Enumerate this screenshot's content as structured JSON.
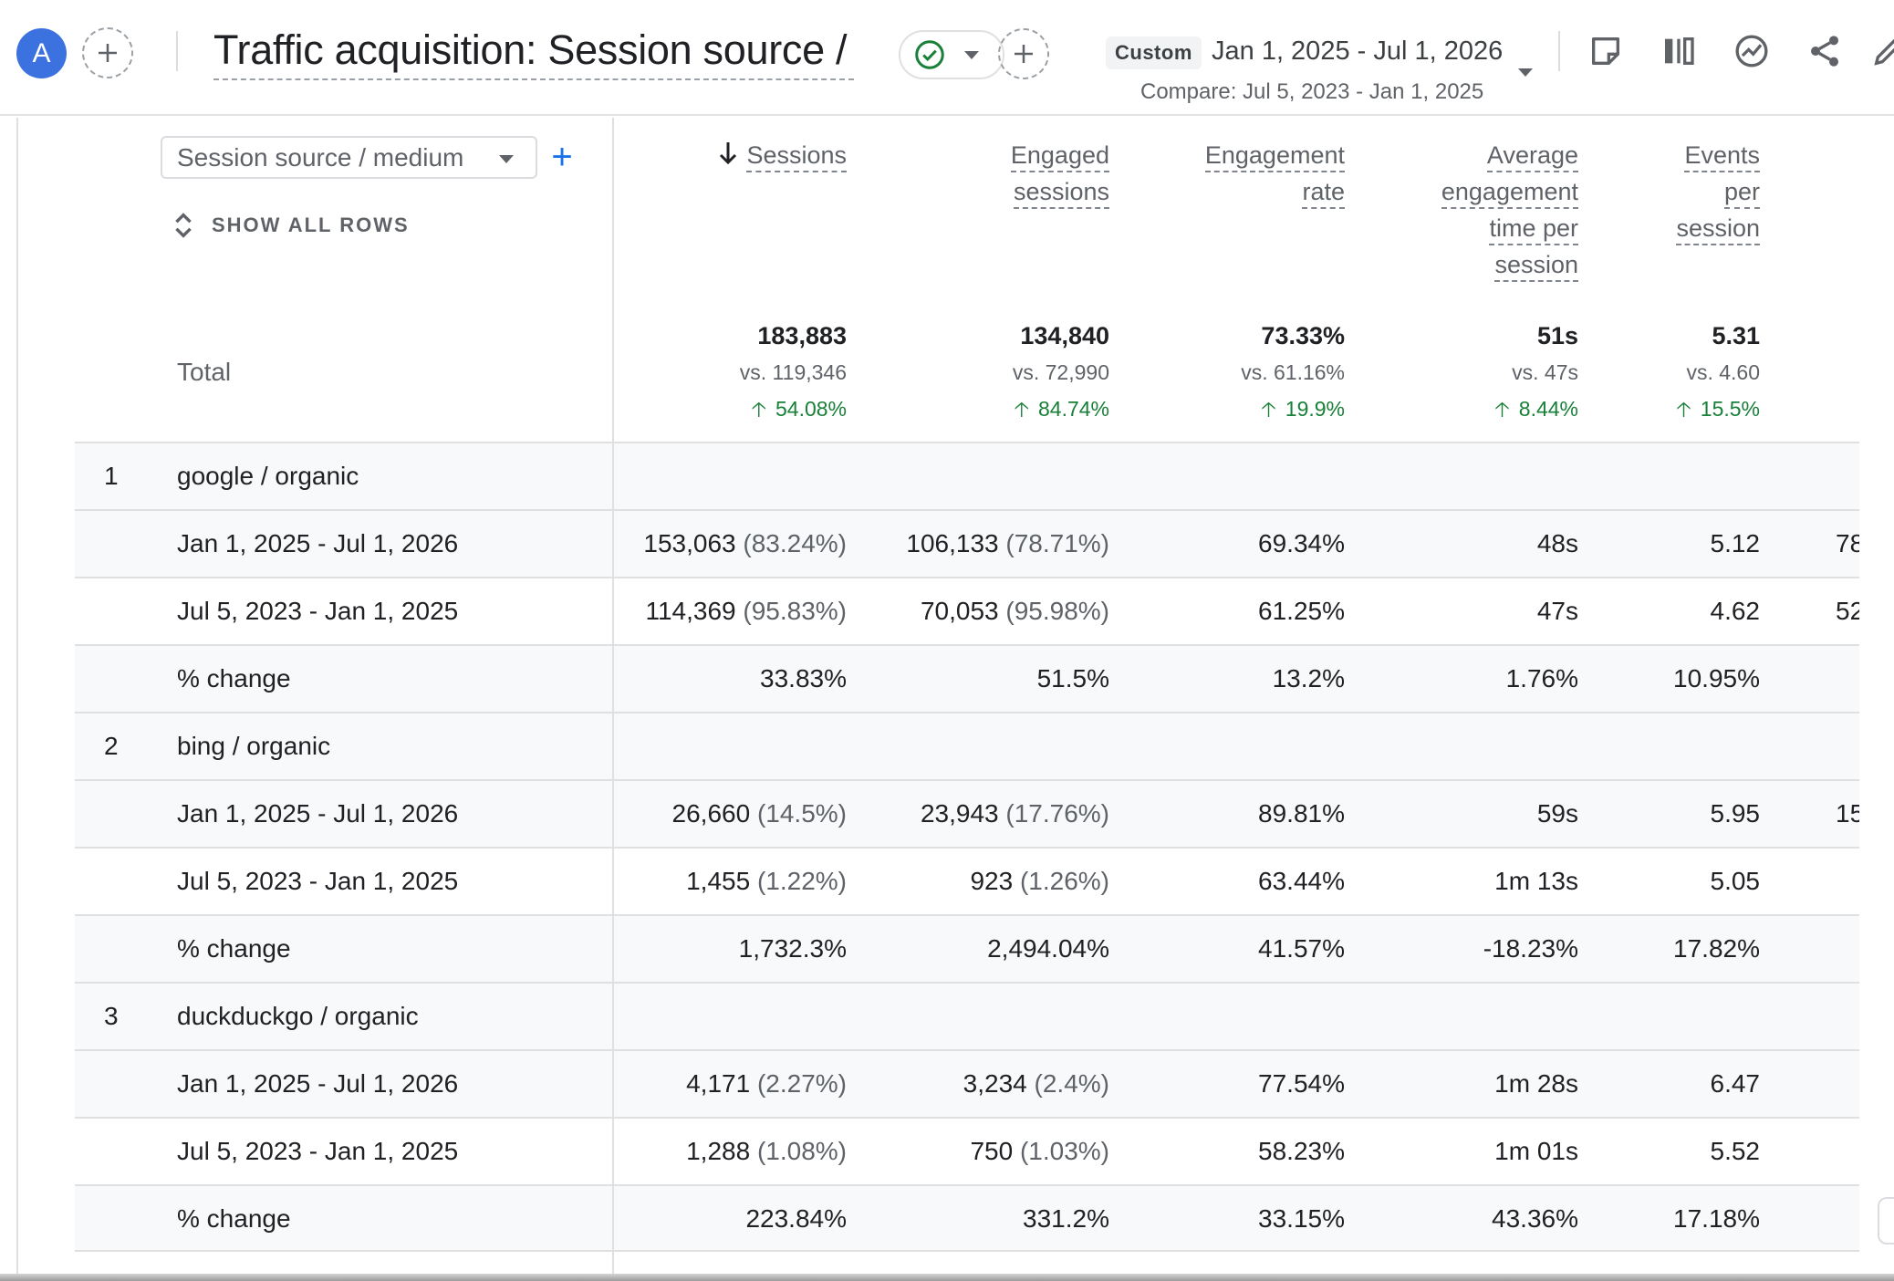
{
  "header": {
    "avatar_letter": "A",
    "title": "Traffic acquisition: Session source / ...",
    "date_chip": "Custom",
    "date_range": "Jan 1, 2025 - Jul 1, 2026",
    "compare_range": "Compare: Jul 5, 2023 - Jan 1, 2025",
    "status": "check-circle-icon",
    "toolbar_icons": [
      "annotation-icon",
      "compare-columns-icon",
      "insights-icon",
      "share-icon",
      "edit-icon"
    ]
  },
  "table": {
    "dimension_select": "Session source / medium",
    "add_dimension": "+",
    "show_all_rows": "SHOW ALL ROWS",
    "columns": [
      {
        "label_lines": [
          "Sessions"
        ],
        "sorted": "descending"
      },
      {
        "label_lines": [
          "Engaged",
          "sessions"
        ]
      },
      {
        "label_lines": [
          "Engagement",
          "rate"
        ]
      },
      {
        "label_lines": [
          "Average",
          "engagement",
          "time per",
          "session"
        ]
      },
      {
        "label_lines": [
          "Events",
          "per",
          "session"
        ]
      }
    ],
    "total": {
      "label": "Total",
      "values": [
        {
          "main": "183,883",
          "vs": "vs. 119,346",
          "delta": "54.08%"
        },
        {
          "main": "134,840",
          "vs": "vs. 72,990",
          "delta": "84.74%"
        },
        {
          "main": "73.33%",
          "vs": "vs. 61.16%",
          "delta": "19.9%"
        },
        {
          "main": "51s",
          "vs": "vs. 47s",
          "delta": "8.44%"
        },
        {
          "main": "5.31",
          "vs": "vs. 4.60",
          "delta": "15.5%"
        }
      ],
      "delta_color": "#188038"
    },
    "groups": [
      {
        "index": "1",
        "name": "google / organic",
        "rows": [
          {
            "label": "Jan 1, 2025 - Jul 1, 2026",
            "sessions": "153,063",
            "sessions_pct": "(83.24%)",
            "engaged": "106,133",
            "engaged_pct": "(78.71%)",
            "rate": "69.34%",
            "avg_time": "48s",
            "events": "5.12",
            "clipped": "78"
          },
          {
            "label": "Jul 5, 2023 - Jan 1, 2025",
            "sessions": "114,369",
            "sessions_pct": "(95.83%)",
            "engaged": "70,053",
            "engaged_pct": "(95.98%)",
            "rate": "61.25%",
            "avg_time": "47s",
            "events": "4.62",
            "clipped": "52"
          },
          {
            "label": "% change",
            "sessions": "33.83%",
            "sessions_pct": "",
            "engaged": "51.5%",
            "engaged_pct": "",
            "rate": "13.2%",
            "avg_time": "1.76%",
            "events": "10.95%",
            "clipped": ""
          }
        ]
      },
      {
        "index": "2",
        "name": "bing / organic",
        "rows": [
          {
            "label": "Jan 1, 2025 - Jul 1, 2026",
            "sessions": "26,660",
            "sessions_pct": "(14.5%)",
            "engaged": "23,943",
            "engaged_pct": "(17.76%)",
            "rate": "89.81%",
            "avg_time": "59s",
            "events": "5.95",
            "clipped": "15"
          },
          {
            "label": "Jul 5, 2023 - Jan 1, 2025",
            "sessions": "1,455",
            "sessions_pct": "(1.22%)",
            "engaged": "923",
            "engaged_pct": "(1.26%)",
            "rate": "63.44%",
            "avg_time": "1m 13s",
            "events": "5.05",
            "clipped": ""
          },
          {
            "label": "% change",
            "sessions": "1,732.3%",
            "sessions_pct": "",
            "engaged": "2,494.04%",
            "engaged_pct": "",
            "rate": "41.57%",
            "avg_time": "-18.23%",
            "events": "17.82%",
            "clipped": ""
          }
        ]
      },
      {
        "index": "3",
        "name": "duckduckgo / organic",
        "rows": [
          {
            "label": "Jan 1, 2025 - Jul 1, 2026",
            "sessions": "4,171",
            "sessions_pct": "(2.27%)",
            "engaged": "3,234",
            "engaged_pct": "(2.4%)",
            "rate": "77.54%",
            "avg_time": "1m 28s",
            "events": "6.47",
            "clipped": ""
          },
          {
            "label": "Jul 5, 2023 - Jan 1, 2025",
            "sessions": "1,288",
            "sessions_pct": "(1.08%)",
            "engaged": "750",
            "engaged_pct": "(1.03%)",
            "rate": "58.23%",
            "avg_time": "1m 01s",
            "events": "5.52",
            "clipped": ""
          },
          {
            "label": "% change",
            "sessions": "223.84%",
            "sessions_pct": "",
            "engaged": "331.2%",
            "engaged_pct": "",
            "rate": "33.15%",
            "avg_time": "43.36%",
            "events": "17.18%",
            "clipped": ""
          }
        ]
      }
    ]
  }
}
